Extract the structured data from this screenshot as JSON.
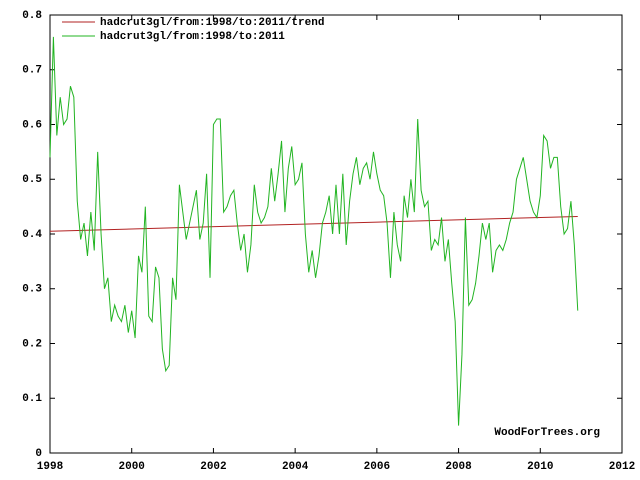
{
  "chart_data": {
    "type": "line",
    "series": [
      {
        "name": "hadcrut3gl/from:1998/to:2011/trend",
        "color": "#b22222",
        "x": [
          1998,
          2010.917
        ],
        "values": [
          0.405,
          0.432
        ]
      },
      {
        "name": "hadcrut3gl/from:1998/to:2011",
        "color": "#22b422",
        "x": [
          1998.0,
          1998.083,
          1998.167,
          1998.25,
          1998.333,
          1998.417,
          1998.5,
          1998.583,
          1998.667,
          1998.75,
          1998.833,
          1998.917,
          1999.0,
          1999.083,
          1999.167,
          1999.25,
          1999.333,
          1999.417,
          1999.5,
          1999.583,
          1999.667,
          1999.75,
          1999.833,
          1999.917,
          2000.0,
          2000.083,
          2000.167,
          2000.25,
          2000.333,
          2000.417,
          2000.5,
          2000.583,
          2000.667,
          2000.75,
          2000.833,
          2000.917,
          2001.0,
          2001.083,
          2001.167,
          2001.25,
          2001.333,
          2001.417,
          2001.5,
          2001.583,
          2001.667,
          2001.75,
          2001.833,
          2001.917,
          2002.0,
          2002.083,
          2002.167,
          2002.25,
          2002.333,
          2002.417,
          2002.5,
          2002.583,
          2002.667,
          2002.75,
          2002.833,
          2002.917,
          2003.0,
          2003.083,
          2003.167,
          2003.25,
          2003.333,
          2003.417,
          2003.5,
          2003.583,
          2003.667,
          2003.75,
          2003.833,
          2003.917,
          2004.0,
          2004.083,
          2004.167,
          2004.25,
          2004.333,
          2004.417,
          2004.5,
          2004.583,
          2004.667,
          2004.75,
          2004.833,
          2004.917,
          2005.0,
          2005.083,
          2005.167,
          2005.25,
          2005.333,
          2005.417,
          2005.5,
          2005.583,
          2005.667,
          2005.75,
          2005.833,
          2005.917,
          2006.0,
          2006.083,
          2006.167,
          2006.25,
          2006.333,
          2006.417,
          2006.5,
          2006.583,
          2006.667,
          2006.75,
          2006.833,
          2006.917,
          2007.0,
          2007.083,
          2007.167,
          2007.25,
          2007.333,
          2007.417,
          2007.5,
          2007.583,
          2007.667,
          2007.75,
          2007.833,
          2007.917,
          2008.0,
          2008.083,
          2008.167,
          2008.25,
          2008.333,
          2008.417,
          2008.5,
          2008.583,
          2008.667,
          2008.75,
          2008.833,
          2008.917,
          2009.0,
          2009.083,
          2009.167,
          2009.25,
          2009.333,
          2009.417,
          2009.5,
          2009.583,
          2009.667,
          2009.75,
          2009.833,
          2009.917,
          2010.0,
          2010.083,
          2010.167,
          2010.25,
          2010.333,
          2010.417,
          2010.5,
          2010.583,
          2010.667,
          2010.75,
          2010.833,
          2010.917
        ],
        "values": [
          0.54,
          0.76,
          0.58,
          0.65,
          0.6,
          0.61,
          0.67,
          0.65,
          0.46,
          0.39,
          0.42,
          0.36,
          0.44,
          0.37,
          0.55,
          0.4,
          0.3,
          0.32,
          0.24,
          0.27,
          0.25,
          0.24,
          0.27,
          0.22,
          0.26,
          0.21,
          0.36,
          0.33,
          0.45,
          0.25,
          0.24,
          0.34,
          0.32,
          0.19,
          0.15,
          0.16,
          0.32,
          0.28,
          0.49,
          0.44,
          0.39,
          0.42,
          0.45,
          0.48,
          0.39,
          0.42,
          0.51,
          0.32,
          0.6,
          0.61,
          0.61,
          0.44,
          0.45,
          0.47,
          0.48,
          0.42,
          0.37,
          0.4,
          0.33,
          0.38,
          0.49,
          0.44,
          0.42,
          0.43,
          0.45,
          0.52,
          0.46,
          0.51,
          0.57,
          0.44,
          0.52,
          0.56,
          0.49,
          0.5,
          0.53,
          0.4,
          0.33,
          0.37,
          0.32,
          0.36,
          0.42,
          0.44,
          0.47,
          0.4,
          0.49,
          0.4,
          0.51,
          0.38,
          0.46,
          0.51,
          0.54,
          0.49,
          0.52,
          0.53,
          0.5,
          0.55,
          0.51,
          0.48,
          0.47,
          0.42,
          0.32,
          0.44,
          0.38,
          0.35,
          0.47,
          0.43,
          0.5,
          0.44,
          0.61,
          0.48,
          0.45,
          0.46,
          0.37,
          0.39,
          0.38,
          0.43,
          0.35,
          0.39,
          0.31,
          0.24,
          0.05,
          0.18,
          0.43,
          0.27,
          0.28,
          0.31,
          0.36,
          0.42,
          0.39,
          0.42,
          0.33,
          0.37,
          0.38,
          0.37,
          0.39,
          0.42,
          0.44,
          0.5,
          0.52,
          0.54,
          0.5,
          0.46,
          0.44,
          0.43,
          0.47,
          0.58,
          0.57,
          0.52,
          0.54,
          0.54,
          0.45,
          0.4,
          0.41,
          0.46,
          0.38,
          0.26
        ]
      }
    ],
    "xlim": [
      1998,
      2012
    ],
    "xticks": [
      1998,
      2000,
      2002,
      2004,
      2006,
      2008,
      2010,
      2012
    ],
    "ylim": [
      0,
      0.8
    ],
    "yticks": [
      0,
      0.1,
      0.2,
      0.3,
      0.4,
      0.5,
      0.6,
      0.7,
      0.8
    ],
    "legend": "top-left",
    "watermark": "WoodForTrees.org"
  }
}
